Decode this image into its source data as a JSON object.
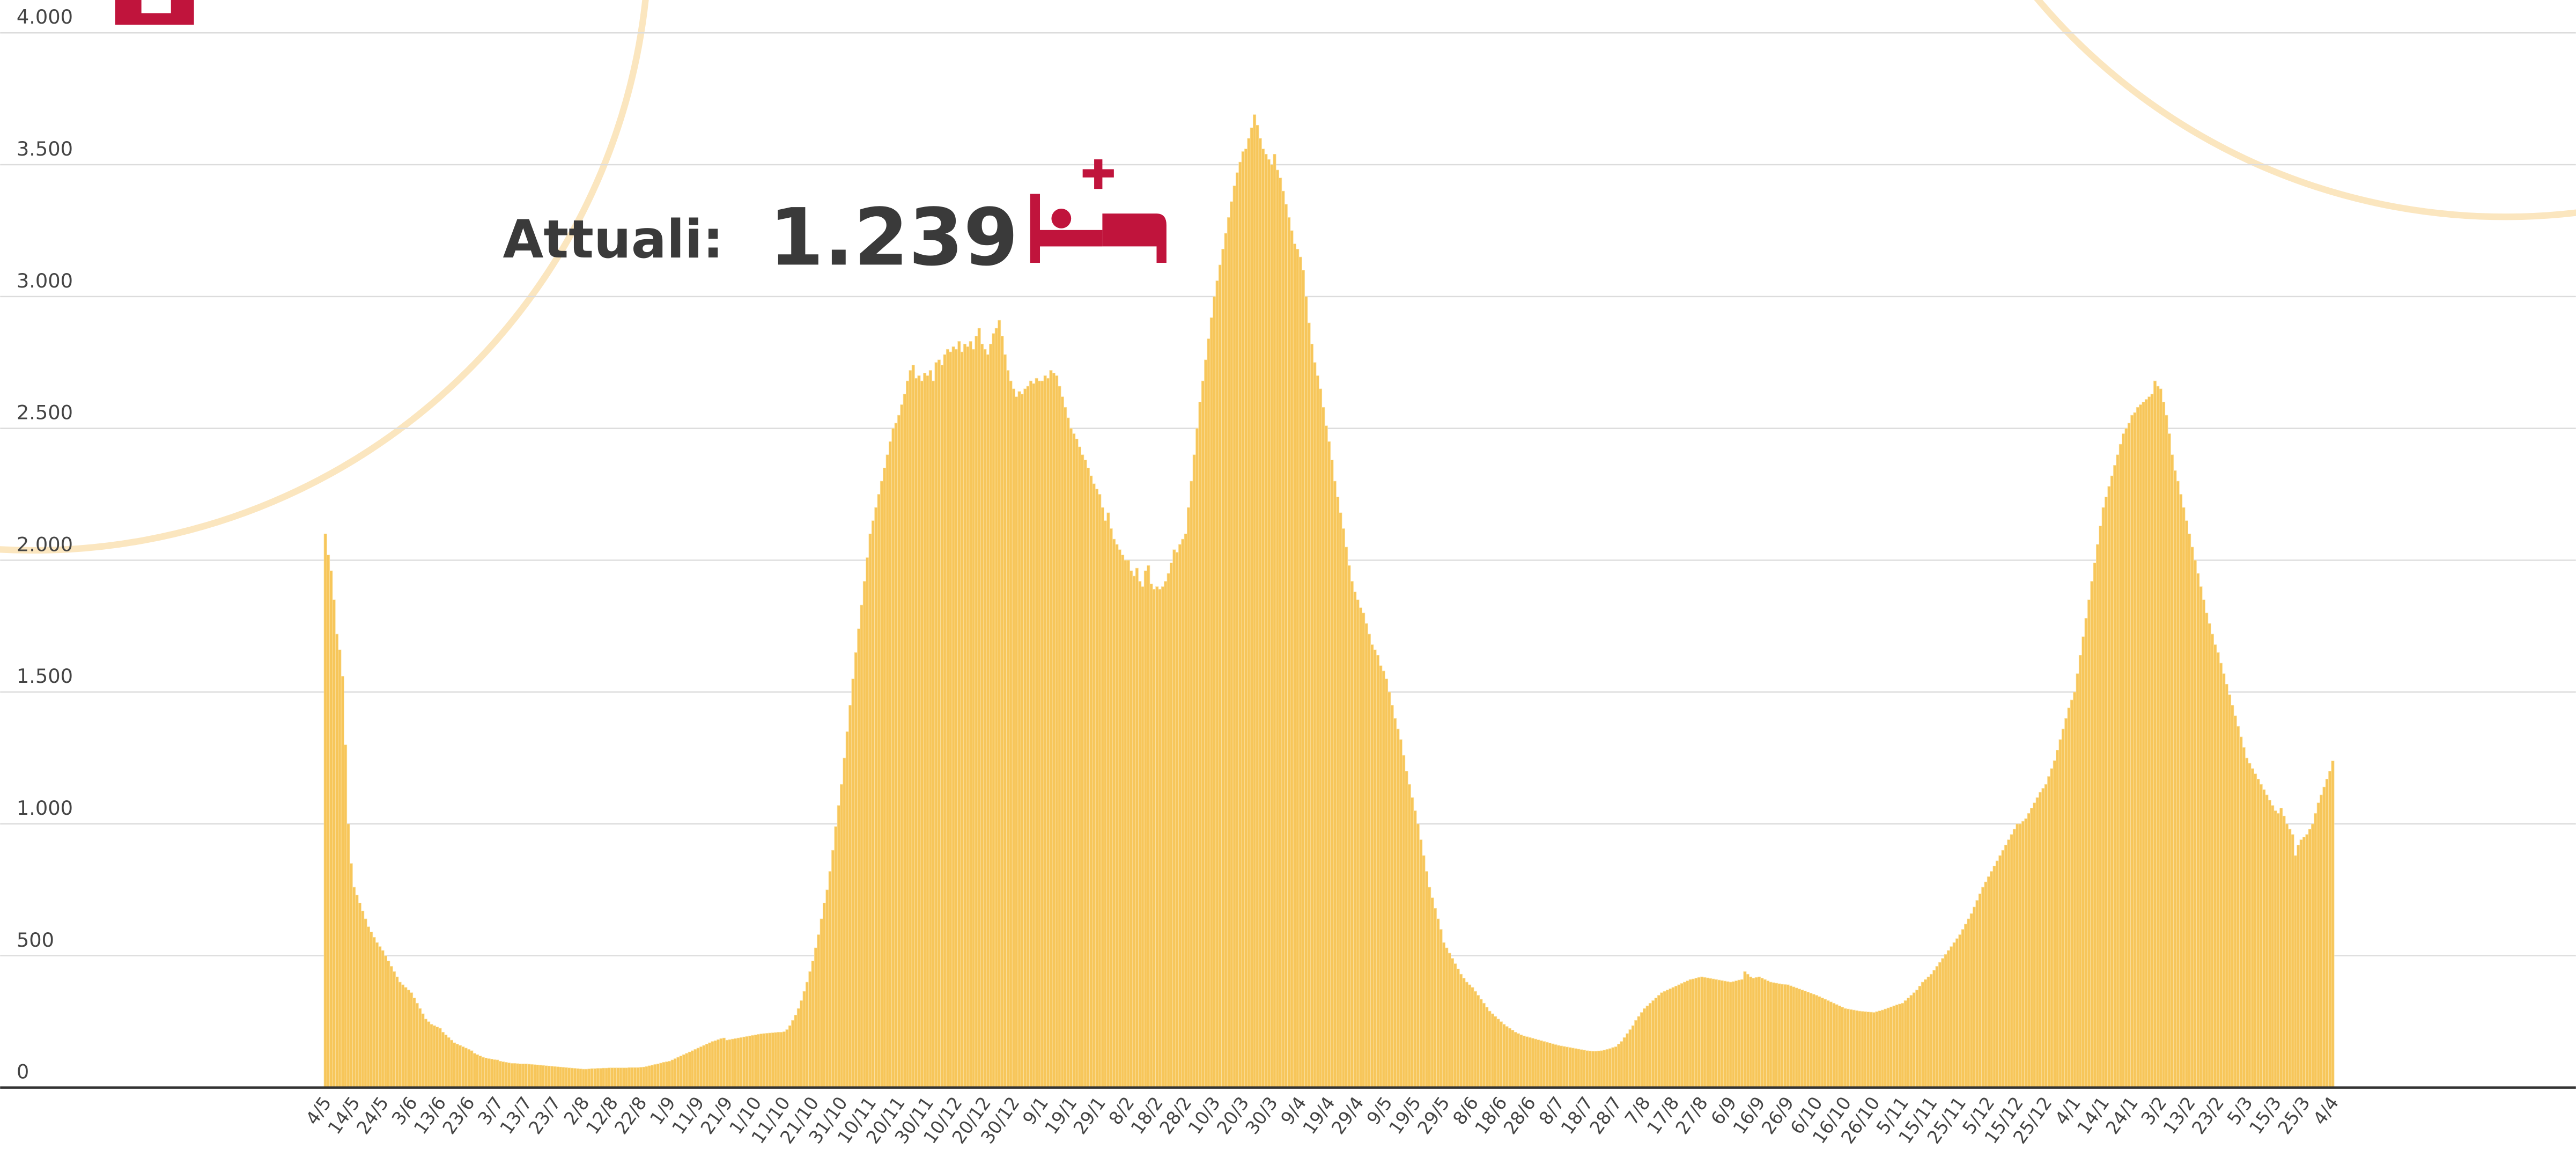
{
  "chart_data": {
    "type": "bar",
    "color": "#f7c65a",
    "grid": true,
    "annotation": {
      "label": "Attuali:",
      "value": "1.239"
    },
    "ylim": [
      0,
      4000
    ],
    "yticks": [
      0,
      500,
      {
        "value": 1000,
        "label": "1.000"
      },
      {
        "value": 1500,
        "label": "1.500"
      },
      {
        "value": 2000,
        "label": "2.000"
      },
      {
        "value": 2500,
        "label": "2.500"
      },
      {
        "value": 3000,
        "label": "3.000"
      },
      {
        "value": 3500,
        "label": "3.500"
      },
      {
        "value": 4000,
        "label": "4.000"
      }
    ],
    "categories": [
      "4/5",
      null,
      null,
      null,
      null,
      null,
      null,
      null,
      null,
      null,
      "14/5",
      null,
      null,
      null,
      null,
      null,
      null,
      null,
      null,
      null,
      "24/5",
      null,
      null,
      null,
      null,
      null,
      null,
      null,
      null,
      null,
      "3/6",
      null,
      null,
      null,
      null,
      null,
      null,
      null,
      null,
      null,
      "13/6",
      null,
      null,
      null,
      null,
      null,
      null,
      null,
      null,
      null,
      "23/6",
      null,
      null,
      null,
      null,
      null,
      null,
      null,
      null,
      null,
      "3/7",
      null,
      null,
      null,
      null,
      null,
      null,
      null,
      null,
      null,
      "13/7",
      null,
      null,
      null,
      null,
      null,
      null,
      null,
      null,
      null,
      "23/7",
      null,
      null,
      null,
      null,
      null,
      null,
      null,
      null,
      null,
      "2/8",
      null,
      null,
      null,
      null,
      null,
      null,
      null,
      null,
      null,
      "12/8",
      null,
      null,
      null,
      null,
      null,
      null,
      null,
      null,
      null,
      "22/8",
      null,
      null,
      null,
      null,
      null,
      null,
      null,
      null,
      null,
      "1/9",
      null,
      null,
      null,
      null,
      null,
      null,
      null,
      null,
      null,
      "11/9",
      null,
      null,
      null,
      null,
      null,
      null,
      null,
      null,
      null,
      "21/9",
      null,
      null,
      null,
      null,
      null,
      null,
      null,
      null,
      null,
      "1/10",
      null,
      null,
      null,
      null,
      null,
      null,
      null,
      null,
      null,
      "11/10",
      null,
      null,
      null,
      null,
      null,
      null,
      null,
      null,
      null,
      "21/10",
      null,
      null,
      null,
      null,
      null,
      null,
      null,
      null,
      null,
      "31/10",
      null,
      null,
      null,
      null,
      null,
      null,
      null,
      null,
      null,
      "10/11",
      null,
      null,
      null,
      null,
      null,
      null,
      null,
      null,
      null,
      "20/11",
      null,
      null,
      null,
      null,
      null,
      null,
      null,
      null,
      null,
      "30/11",
      null,
      null,
      null,
      null,
      null,
      null,
      null,
      null,
      null,
      "10/12",
      null,
      null,
      null,
      null,
      null,
      null,
      null,
      null,
      null,
      "20/12",
      null,
      null,
      null,
      null,
      null,
      null,
      null,
      null,
      null,
      "30/12",
      null,
      null,
      null,
      null,
      null,
      null,
      null,
      null,
      null,
      "9/1",
      null,
      null,
      null,
      null,
      null,
      null,
      null,
      null,
      null,
      "19/1",
      null,
      null,
      null,
      null,
      null,
      null,
      null,
      null,
      null,
      "29/1",
      null,
      null,
      null,
      null,
      null,
      null,
      null,
      null,
      null,
      "8/2",
      null,
      null,
      null,
      null,
      null,
      null,
      null,
      null,
      null,
      "18/2",
      null,
      null,
      null,
      null,
      null,
      null,
      null,
      null,
      null,
      "28/2",
      null,
      null,
      null,
      null,
      null,
      null,
      null,
      null,
      null,
      "10/3",
      null,
      null,
      null,
      null,
      null,
      null,
      null,
      null,
      null,
      "20/3",
      null,
      null,
      null,
      null,
      null,
      null,
      null,
      null,
      null,
      "30/3",
      null,
      null,
      null,
      null,
      null,
      null,
      null,
      null,
      null,
      "9/4",
      null,
      null,
      null,
      null,
      null,
      null,
      null,
      null,
      null,
      "19/4",
      null,
      null,
      null,
      null,
      null,
      null,
      null,
      null,
      null,
      "29/4",
      null,
      null,
      null,
      null,
      null,
      null,
      null,
      null,
      null,
      "9/5",
      null,
      null,
      null,
      null,
      null,
      null,
      null,
      null,
      null,
      "19/5",
      null,
      null,
      null,
      null,
      null,
      null,
      null,
      null,
      null,
      "29/5",
      null,
      null,
      null,
      null,
      null,
      null,
      null,
      null,
      null,
      "8/6",
      null,
      null,
      null,
      null,
      null,
      null,
      null,
      null,
      null,
      "18/6",
      null,
      null,
      null,
      null,
      null,
      null,
      null,
      null,
      null,
      "28/6",
      null,
      null,
      null,
      null,
      null,
      null,
      null,
      null,
      null,
      "8/7",
      null,
      null,
      null,
      null,
      null,
      null,
      null,
      null,
      null,
      "18/7",
      null,
      null,
      null,
      null,
      null,
      null,
      null,
      null,
      null,
      "28/7",
      null,
      null,
      null,
      null,
      null,
      null,
      null,
      null,
      null,
      "7/8",
      null,
      null,
      null,
      null,
      null,
      null,
      null,
      null,
      null,
      "17/8",
      null,
      null,
      null,
      null,
      null,
      null,
      null,
      null,
      null,
      "27/8",
      null,
      null,
      null,
      null,
      null,
      null,
      null,
      null,
      null,
      "6/9",
      null,
      null,
      null,
      null,
      null,
      null,
      null,
      null,
      null,
      "16/9",
      null,
      null,
      null,
      null,
      null,
      null,
      null,
      null,
      null,
      "26/9",
      null,
      null,
      null,
      null,
      null,
      null,
      null,
      null,
      null,
      "6/10",
      null,
      null,
      null,
      null,
      null,
      null,
      null,
      null,
      null,
      "16/10",
      null,
      null,
      null,
      null,
      null,
      null,
      null,
      null,
      null,
      "26/10",
      null,
      null,
      null,
      null,
      null,
      null,
      null,
      null,
      null,
      "5/11",
      null,
      null,
      null,
      null,
      null,
      null,
      null,
      null,
      null,
      "15/11",
      null,
      null,
      null,
      null,
      null,
      null,
      null,
      null,
      null,
      "25/11",
      null,
      null,
      null,
      null,
      null,
      null,
      null,
      null,
      null,
      "5/12",
      null,
      null,
      null,
      null,
      null,
      null,
      null,
      null,
      null,
      "15/12",
      null,
      null,
      null,
      null,
      null,
      null,
      null,
      null,
      null,
      "25/12",
      null,
      null,
      null,
      null,
      null,
      null,
      null,
      null,
      null,
      "4/1",
      null,
      null,
      null,
      null,
      null,
      null,
      null,
      null,
      null,
      "14/1",
      null,
      null,
      null,
      null,
      null,
      null,
      null,
      null,
      null,
      "24/1",
      null,
      null,
      null,
      null,
      null,
      null,
      null,
      null,
      null,
      "3/2",
      null,
      null,
      null,
      null,
      null,
      null,
      null,
      null,
      null,
      "13/2",
      null,
      null,
      null,
      null,
      null,
      null,
      null,
      null,
      null,
      "23/2",
      null,
      null,
      null,
      null,
      null,
      null,
      null,
      null,
      null,
      "5/3",
      null,
      null,
      null,
      null,
      null,
      null,
      null,
      null,
      null,
      "15/3",
      null,
      null,
      null,
      null,
      null,
      null,
      null,
      null,
      null,
      "25/3",
      null,
      null,
      null,
      null,
      null,
      null,
      null,
      null,
      null,
      "4/4"
    ],
    "values": [
      2100,
      2020,
      1960,
      1850,
      1720,
      1660,
      1560,
      1300,
      1000,
      850,
      760,
      730,
      700,
      670,
      640,
      610,
      590,
      570,
      550,
      535,
      520,
      500,
      480,
      460,
      440,
      420,
      400,
      390,
      380,
      370,
      360,
      340,
      320,
      300,
      280,
      260,
      250,
      240,
      235,
      230,
      225,
      210,
      200,
      190,
      180,
      170,
      165,
      160,
      155,
      150,
      145,
      140,
      130,
      125,
      120,
      115,
      112,
      110,
      108,
      106,
      105,
      100,
      98,
      96,
      94,
      92,
      92,
      91,
      90,
      90,
      90,
      89,
      88,
      87,
      86,
      85,
      84,
      83,
      82,
      81,
      80,
      79,
      78,
      77,
      76,
      75,
      74,
      73,
      72,
      71,
      70,
      70,
      71,
      72,
      72,
      73,
      73,
      74,
      74,
      75,
      75,
      75,
      75,
      75,
      75,
      75,
      76,
      76,
      76,
      76,
      77,
      78,
      80,
      83,
      85,
      88,
      90,
      93,
      96,
      98,
      100,
      105,
      110,
      115,
      120,
      125,
      130,
      135,
      140,
      145,
      150,
      155,
      160,
      165,
      170,
      175,
      178,
      182,
      186,
      188,
      180,
      182,
      184,
      186,
      188,
      190,
      192,
      194,
      196,
      198,
      200,
      202,
      204,
      205,
      206,
      207,
      208,
      209,
      210,
      210,
      212,
      220,
      235,
      255,
      275,
      300,
      330,
      365,
      400,
      440,
      480,
      530,
      580,
      640,
      700,
      750,
      820,
      900,
      990,
      1070,
      1150,
      1250,
      1350,
      1450,
      1550,
      1650,
      1740,
      1830,
      1920,
      2010,
      2100,
      2150,
      2200,
      2250,
      2300,
      2350,
      2400,
      2450,
      2500,
      2520,
      2550,
      2590,
      2630,
      2680,
      2720,
      2740,
      2690,
      2700,
      2680,
      2710,
      2700,
      2720,
      2680,
      2750,
      2760,
      2740,
      2780,
      2800,
      2790,
      2810,
      2800,
      2830,
      2790,
      2820,
      2810,
      2830,
      2800,
      2850,
      2880,
      2820,
      2800,
      2780,
      2820,
      2860,
      2880,
      2910,
      2850,
      2780,
      2720,
      2680,
      2650,
      2620,
      2640,
      2630,
      2650,
      2660,
      2680,
      2670,
      2690,
      2680,
      2680,
      2700,
      2690,
      2720,
      2710,
      2700,
      2660,
      2620,
      2580,
      2540,
      2500,
      2480,
      2460,
      2430,
      2400,
      2380,
      2350,
      2320,
      2290,
      2270,
      2250,
      2200,
      2150,
      2180,
      2120,
      2080,
      2060,
      2040,
      2020,
      2000,
      2000,
      1960,
      1940,
      1970,
      1920,
      1900,
      1960,
      1980,
      1910,
      1890,
      1900,
      1890,
      1900,
      1920,
      1950,
      1990,
      2040,
      2030,
      2060,
      2080,
      2100,
      2200,
      2300,
      2400,
      2500,
      2600,
      2680,
      2760,
      2840,
      2920,
      3000,
      3060,
      3120,
      3180,
      3240,
      3300,
      3360,
      3420,
      3470,
      3510,
      3550,
      3560,
      3600,
      3640,
      3690,
      3650,
      3600,
      3560,
      3540,
      3520,
      3500,
      3540,
      3480,
      3450,
      3400,
      3350,
      3300,
      3250,
      3200,
      3180,
      3150,
      3100,
      3000,
      2900,
      2820,
      2750,
      2700,
      2650,
      2580,
      2510,
      2450,
      2380,
      2300,
      2240,
      2180,
      2120,
      2050,
      1980,
      1920,
      1880,
      1850,
      1820,
      1800,
      1760,
      1720,
      1680,
      1660,
      1640,
      1600,
      1580,
      1550,
      1500,
      1450,
      1400,
      1360,
      1320,
      1260,
      1200,
      1150,
      1100,
      1050,
      1000,
      940,
      880,
      820,
      760,
      720,
      680,
      640,
      600,
      550,
      530,
      510,
      490,
      470,
      450,
      430,
      415,
      400,
      390,
      380,
      365,
      350,
      335,
      320,
      305,
      290,
      280,
      270,
      260,
      250,
      240,
      232,
      225,
      218,
      210,
      205,
      200,
      196,
      193,
      190,
      187,
      184,
      181,
      178,
      175,
      172,
      169,
      166,
      163,
      160,
      158,
      156,
      154,
      152,
      150,
      148,
      146,
      144,
      142,
      140,
      139,
      138,
      138,
      139,
      140,
      142,
      145,
      148,
      152,
      155,
      165,
      175,
      190,
      205,
      220,
      235,
      255,
      270,
      285,
      300,
      310,
      320,
      330,
      340,
      350,
      360,
      365,
      370,
      375,
      380,
      385,
      390,
      395,
      400,
      405,
      410,
      412,
      415,
      418,
      420,
      418,
      416,
      414,
      412,
      410,
      408,
      406,
      404,
      402,
      400,
      402,
      405,
      408,
      410,
      440,
      430,
      420,
      415,
      418,
      420,
      415,
      410,
      405,
      400,
      398,
      396,
      394,
      392,
      391,
      390,
      386,
      382,
      378,
      374,
      370,
      366,
      362,
      358,
      354,
      350,
      345,
      340,
      335,
      330,
      325,
      320,
      315,
      310,
      305,
      300,
      298,
      296,
      294,
      292,
      290,
      289,
      288,
      287,
      286,
      285,
      288,
      291,
      294,
      298,
      302,
      306,
      310,
      314,
      317,
      320,
      330,
      340,
      350,
      360,
      370,
      385,
      400,
      410,
      420,
      430,
      445,
      460,
      475,
      490,
      505,
      520,
      535,
      550,
      565,
      580,
      600,
      620,
      640,
      660,
      685,
      710,
      735,
      760,
      780,
      800,
      820,
      840,
      860,
      880,
      900,
      920,
      940,
      960,
      980,
      1000,
      1000,
      1010,
      1020,
      1040,
      1060,
      1080,
      1100,
      1120,
      1135,
      1150,
      1180,
      1210,
      1240,
      1280,
      1320,
      1360,
      1400,
      1440,
      1470,
      1500,
      1570,
      1640,
      1710,
      1780,
      1850,
      1920,
      1990,
      2060,
      2130,
      2200,
      2240,
      2280,
      2320,
      2360,
      2400,
      2440,
      2480,
      2500,
      2520,
      2550,
      2560,
      2580,
      2590,
      2600,
      2610,
      2620,
      2630,
      2680,
      2660,
      2650,
      2600,
      2550,
      2480,
      2400,
      2340,
      2300,
      2250,
      2200,
      2150,
      2100,
      2050,
      2000,
      1950,
      1900,
      1850,
      1800,
      1760,
      1720,
      1680,
      1650,
      1610,
      1570,
      1530,
      1490,
      1450,
      1410,
      1370,
      1330,
      1290,
      1250,
      1230,
      1210,
      1190,
      1170,
      1150,
      1130,
      1110,
      1090,
      1070,
      1050,
      1040,
      1060,
      1030,
      1000,
      980,
      960,
      880,
      920,
      940,
      950,
      960,
      980,
      1000,
      1040,
      1080,
      1110,
      1140,
      1170,
      1200,
      1239
    ]
  }
}
